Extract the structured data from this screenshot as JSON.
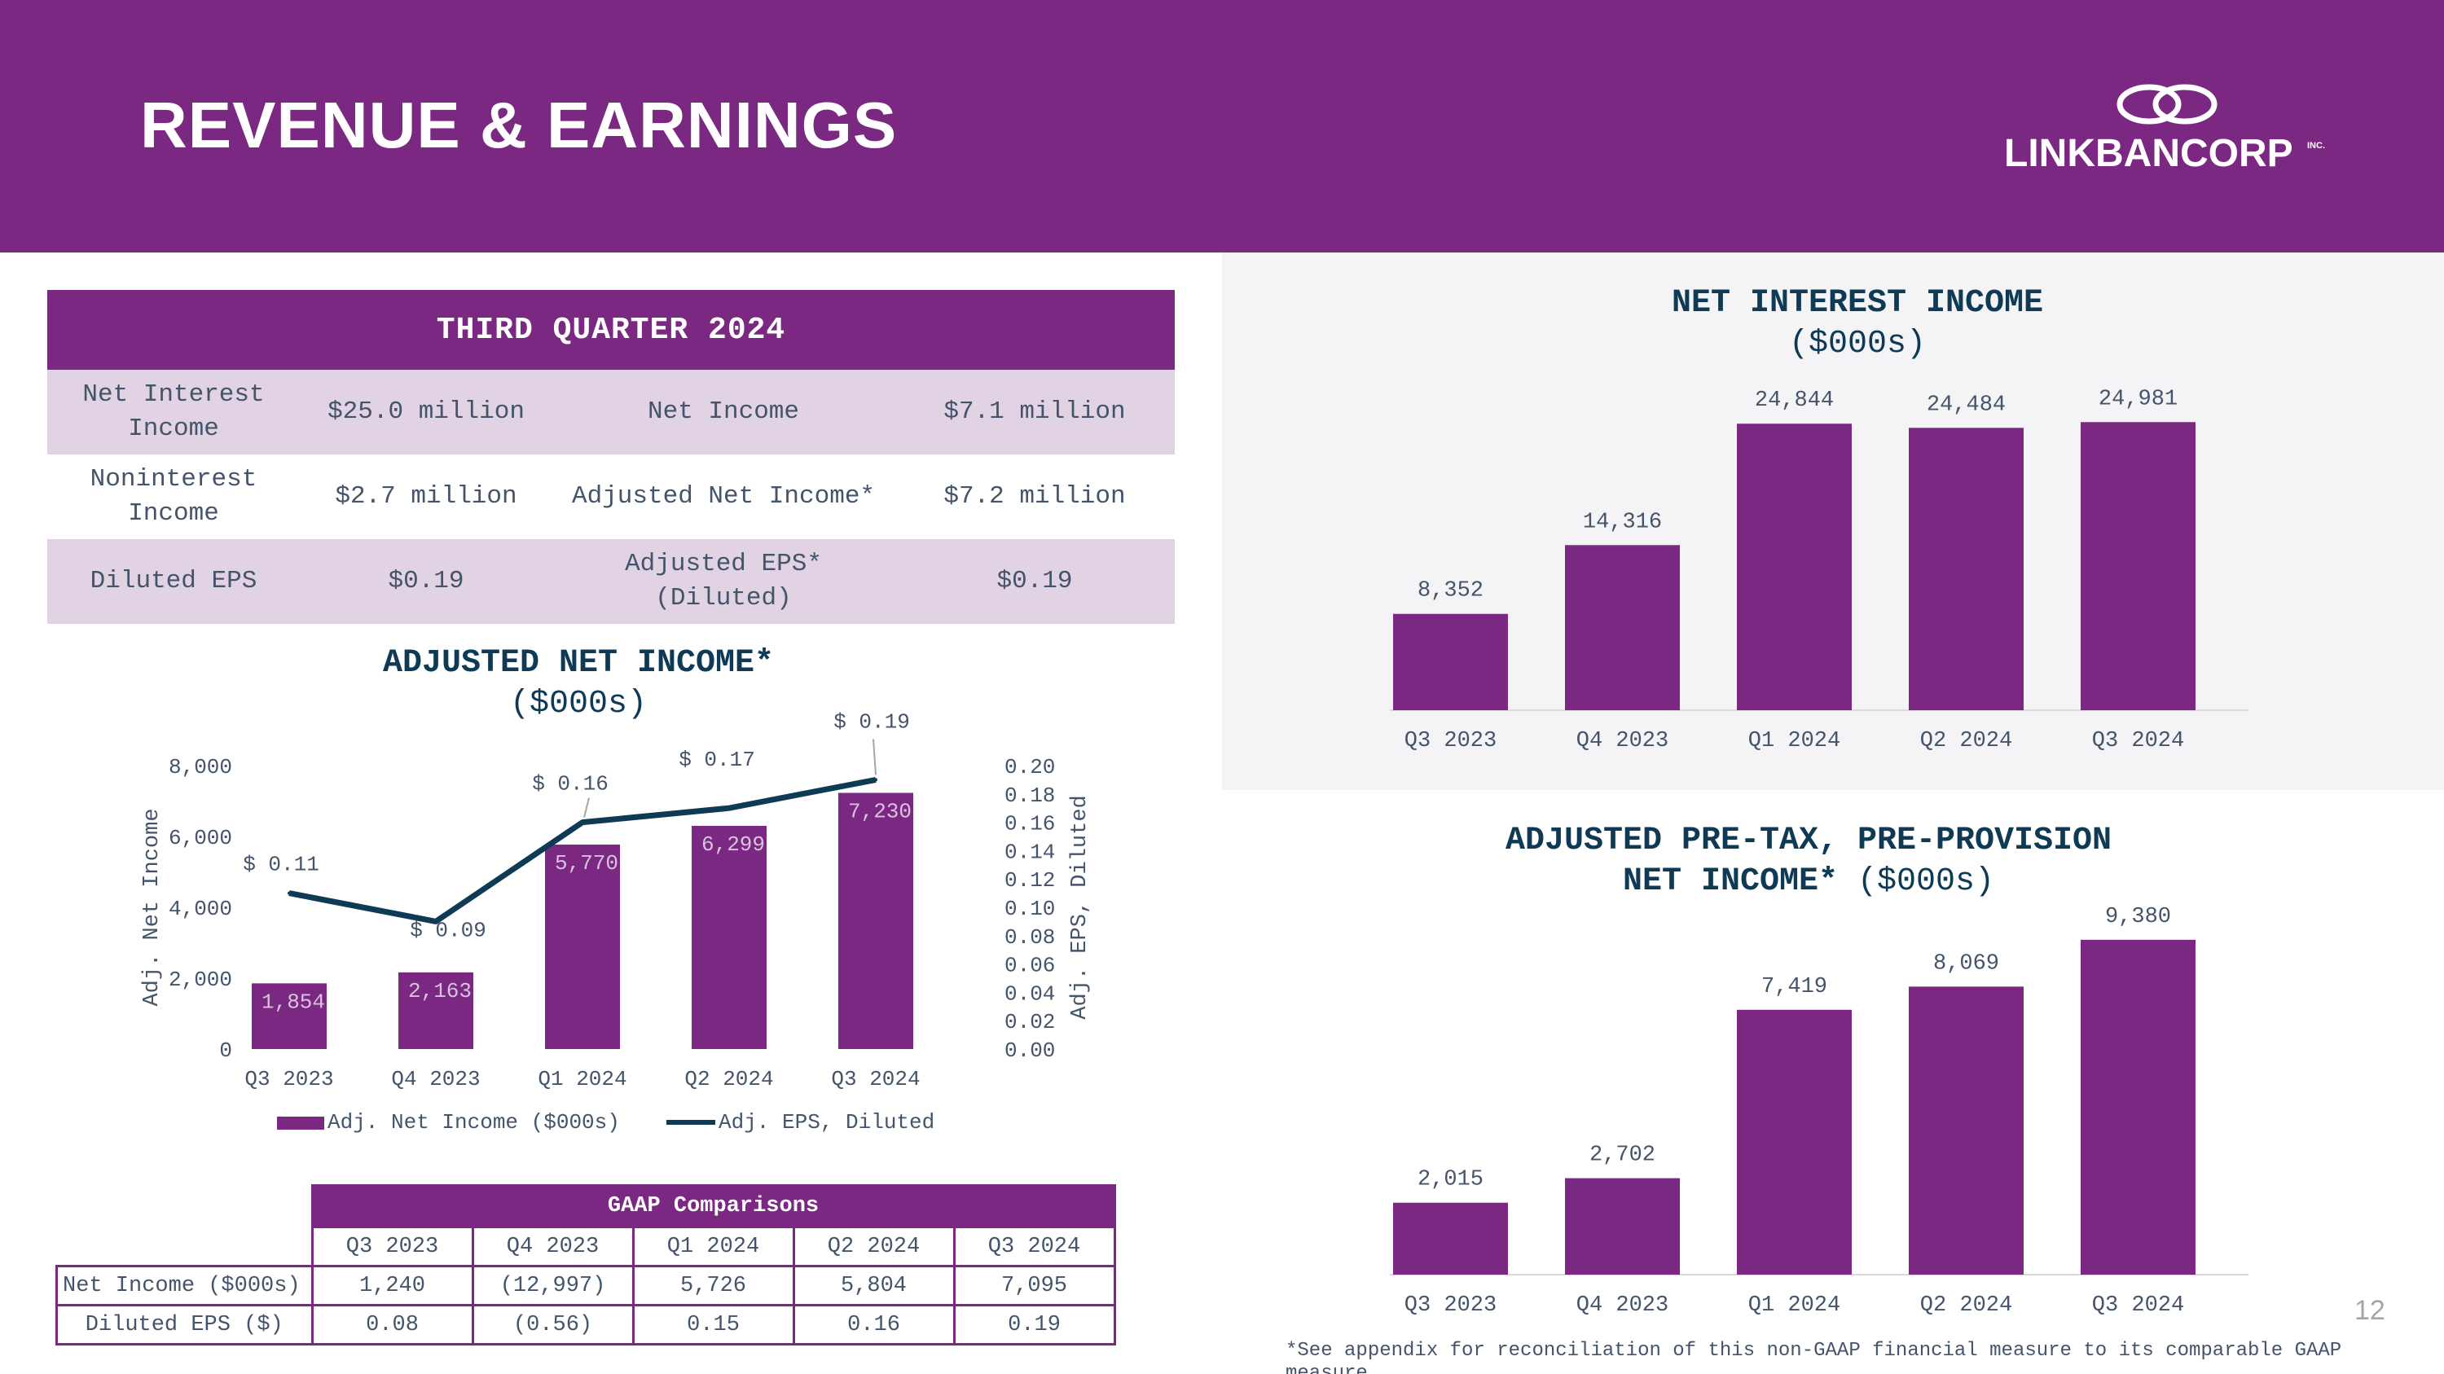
{
  "header": {
    "title": "REVENUE & EARNINGS",
    "logo_text": "LINKBANCORP",
    "logo_inc": "INC."
  },
  "summary": {
    "title": "THIRD QUARTER 2024",
    "rows": [
      [
        "Net Interest Income",
        "$25.0 million",
        "Net Income",
        "$7.1 million"
      ],
      [
        "Noninterest Income",
        "$2.7 million",
        "Adjusted Net Income*",
        "$7.2 million"
      ],
      [
        "Diluted EPS",
        "$0.19",
        "Adjusted EPS* (Diluted)",
        "$0.19"
      ]
    ]
  },
  "gaap": {
    "title": "GAAP Comparisons",
    "columns": [
      "Q3 2023",
      "Q4 2023",
      "Q1 2024",
      "Q2 2024",
      "Q3 2024"
    ],
    "rows": [
      {
        "label": "Net Income ($000s)",
        "values": [
          "1,240",
          "(12,997)",
          "5,726",
          "5,804",
          "7,095"
        ]
      },
      {
        "label": "Diluted EPS ($)",
        "values": [
          "0.08",
          "(0.56)",
          "0.15",
          "0.16",
          "0.19"
        ]
      }
    ]
  },
  "colors": {
    "purple": "#7a2882",
    "navy": "#0e3a55",
    "text": "#44546a",
    "panel": "#f4f3f6"
  },
  "page_number": "12",
  "footnote": "*See appendix for reconciliation of this non-GAAP financial measure to its comparable GAAP measure",
  "chart_data": [
    {
      "type": "bar",
      "title": "ADJUSTED NET INCOME*",
      "subtitle": "($000s)",
      "categories": [
        "Q3 2023",
        "Q4 2023",
        "Q1 2024",
        "Q2 2024",
        "Q3 2024"
      ],
      "series": [
        {
          "name": "Adj. Net Income ($000s)",
          "type": "bar",
          "axis": "left",
          "values": [
            1854,
            2163,
            5770,
            6299,
            7230
          ],
          "labels": [
            "1,854",
            "2,163",
            "5,770",
            "6,299",
            "7,230"
          ]
        },
        {
          "name": "Adj. EPS, Diluted",
          "type": "line",
          "axis": "right",
          "values": [
            0.11,
            0.09,
            0.16,
            0.17,
            0.19
          ],
          "labels": [
            "$ 0.11",
            "$ 0.09",
            "$ 0.16",
            "$ 0.17",
            "$ 0.19"
          ]
        }
      ],
      "ylabel": "Adj. Net Income",
      "ylabel_right": "Adj. EPS, Diluted",
      "ylim": [
        0,
        8000
      ],
      "yticks": [
        "0",
        "2,000",
        "4,000",
        "6,000",
        "8,000"
      ],
      "ylim_right": [
        0,
        0.2
      ],
      "yticks_right": [
        "0.00",
        "0.02",
        "0.04",
        "0.06",
        "0.08",
        "0.10",
        "0.12",
        "0.14",
        "0.16",
        "0.18",
        "0.20"
      ],
      "legend": "bottom"
    },
    {
      "type": "bar",
      "title": "NET INTEREST INCOME",
      "subtitle": "($000s)",
      "categories": [
        "Q3 2023",
        "Q4 2023",
        "Q1 2024",
        "Q2 2024",
        "Q3 2024"
      ],
      "values": [
        8352,
        14316,
        24844,
        24484,
        24981
      ],
      "labels": [
        "8,352",
        "14,316",
        "24,844",
        "24,484",
        "24,981"
      ],
      "ylim": [
        0,
        25000
      ]
    },
    {
      "type": "bar",
      "title": "ADJUSTED PRE-TAX, PRE-PROVISION",
      "title_line2": "NET INCOME*",
      "subtitle": "($000s)",
      "categories": [
        "Q3 2023",
        "Q4 2023",
        "Q1 2024",
        "Q2 2024",
        "Q3 2024"
      ],
      "values": [
        2015,
        2702,
        7419,
        8069,
        9380
      ],
      "labels": [
        "2,015",
        "2,702",
        "7,419",
        "8,069",
        "9,380"
      ],
      "ylim": [
        0,
        9400
      ]
    }
  ]
}
